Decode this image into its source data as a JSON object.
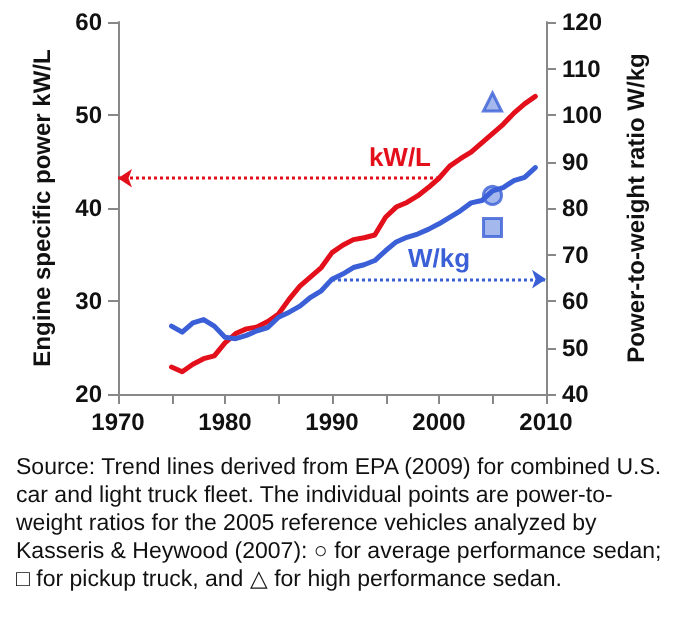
{
  "chart_data": {
    "type": "line",
    "ylabel": "Engine specific power kW/L",
    "y2label": "Power-to-weight ratio W/kg",
    "x": [
      1975,
      1976,
      1977,
      1978,
      1979,
      1980,
      1981,
      1982,
      1983,
      1984,
      1985,
      1986,
      1987,
      1988,
      1989,
      1990,
      1991,
      1992,
      1993,
      1994,
      1995,
      1996,
      1997,
      1998,
      1999,
      2000,
      2001,
      2002,
      2003,
      2004,
      2005,
      2006,
      2007,
      2008,
      2009
    ],
    "series": [
      {
        "name": "kW/L",
        "color": "#e3101c",
        "values": [
          22.9,
          22.4,
          23.2,
          23.8,
          24.1,
          25.5,
          26.5,
          27,
          27.2,
          27.8,
          28.6,
          30.2,
          31.6,
          32.6,
          33.6,
          35.2,
          36,
          36.6,
          36.8,
          37.1,
          39,
          40.1,
          40.6,
          41.3,
          42.2,
          43.2,
          44.5,
          45.3,
          46,
          47,
          48,
          49,
          50.2,
          51.2,
          52
        ]
      },
      {
        "name": "W/kg",
        "color": "#3a5fd6",
        "axis": "y2",
        "values": [
          54.6,
          53.3,
          55.3,
          56,
          54.6,
          52.2,
          51.9,
          52.6,
          53.6,
          54.3,
          56.5,
          57.6,
          58.9,
          60.8,
          62.2,
          64.7,
          65.8,
          67.2,
          67.8,
          68.7,
          70.8,
          72.7,
          73.7,
          74.4,
          75.4,
          76.6,
          78,
          79.4,
          81.1,
          81.6,
          83.7,
          84.4,
          85.9,
          86.6,
          88.7
        ]
      },
      {
        "type": "scatter",
        "axis": "y2",
        "marker": "circle",
        "color": "#3a5fd6",
        "values": [
          null,
          null,
          null,
          null,
          null,
          null,
          null,
          null,
          null,
          null,
          null,
          null,
          null,
          null,
          null,
          null,
          null,
          null,
          null,
          null,
          null,
          null,
          null,
          null,
          null,
          null,
          null,
          null,
          null,
          null,
          82.7,
          null,
          null,
          null,
          null
        ]
      },
      {
        "type": "scatter",
        "axis": "y2",
        "marker": "square",
        "color": "#3a5fd6",
        "values": [
          null,
          null,
          null,
          null,
          null,
          null,
          null,
          null,
          null,
          null,
          null,
          null,
          null,
          null,
          null,
          null,
          null,
          null,
          null,
          null,
          null,
          null,
          null,
          null,
          null,
          null,
          null,
          null,
          null,
          null,
          75.8,
          null,
          null,
          null,
          null
        ]
      },
      {
        "type": "scatter",
        "axis": "y2",
        "marker": "triangle",
        "color": "#3a5fd6",
        "values": [
          null,
          null,
          null,
          null,
          null,
          null,
          null,
          null,
          null,
          null,
          null,
          null,
          null,
          null,
          null,
          null,
          null,
          null,
          null,
          null,
          null,
          null,
          null,
          null,
          null,
          null,
          null,
          null,
          null,
          null,
          102.8,
          null,
          null,
          null,
          null
        ]
      }
    ],
    "xlim": [
      1970,
      2010
    ],
    "xticks": [
      1970,
      {
        "value": 1975,
        "label": null
      },
      1980,
      {
        "value": 1985,
        "label": null
      },
      1990,
      {
        "value": 1995,
        "label": null
      },
      2000,
      {
        "value": 2005,
        "label": null
      },
      2010
    ],
    "ylim": [
      20,
      60
    ],
    "yticks": [
      20,
      30,
      40,
      50,
      60
    ],
    "y2lim": [
      40,
      120
    ],
    "y2ticks": [
      40,
      50,
      60,
      70,
      80,
      90,
      100,
      110,
      120
    ],
    "grid": false,
    "marker": "none",
    "line_style": "solid",
    "annotations": [
      "Source:  Trend lines derived from EPA (2009) for combined U.S. car and light truck fleet. The individual points are power-to-weight ratios for the 2005 reference vehicles analyzed by Kasseris & Heywood (2007): ○ for average performance sedan; □ for pickup truck, and △ for high performance sedan."
    ]
  }
}
